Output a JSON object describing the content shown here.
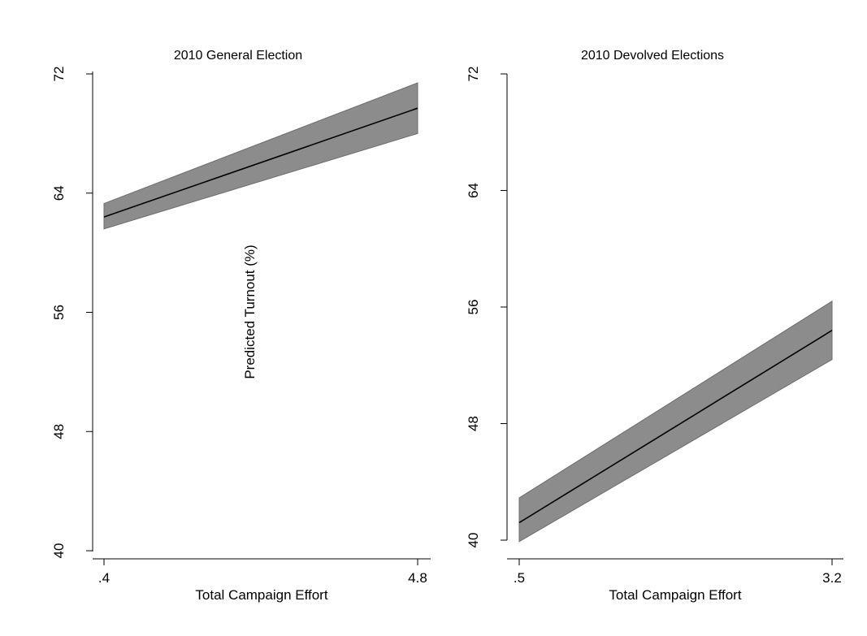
{
  "chart_data": [
    {
      "type": "line",
      "title": "2010 General Election",
      "xlabel": "Total Campaign Effort",
      "ylabel": "Predicted Turnout (%)",
      "xlim": [
        0.4,
        4.8
      ],
      "ylim": [
        40,
        72
      ],
      "x_tick_labels": [
        ".4",
        "4.8"
      ],
      "y_tick_labels": [
        "40",
        "48",
        "56",
        "64",
        "72"
      ],
      "series": [
        {
          "x": [
            0.4,
            4.8
          ],
          "y": [
            62.4,
            69.7
          ],
          "ci_lower": [
            61.6,
            68.0
          ],
          "ci_upper": [
            63.3,
            71.4
          ]
        }
      ],
      "grid": false
    },
    {
      "type": "line",
      "title": "2010 Devolved Elections",
      "xlabel": "Total Campaign Effort",
      "ylabel": "",
      "xlim": [
        0.5,
        3.2
      ],
      "ylim": [
        40,
        72
      ],
      "x_tick_labels": [
        ".5",
        "3.2"
      ],
      "y_tick_labels": [
        "40",
        "48",
        "56",
        "64",
        "72"
      ],
      "series": [
        {
          "x": [
            0.5,
            3.2
          ],
          "y": [
            41.2,
            54.4
          ],
          "ci_lower": [
            39.9,
            52.4
          ],
          "ci_upper": [
            42.9,
            56.4
          ]
        }
      ],
      "grid": false
    }
  ]
}
